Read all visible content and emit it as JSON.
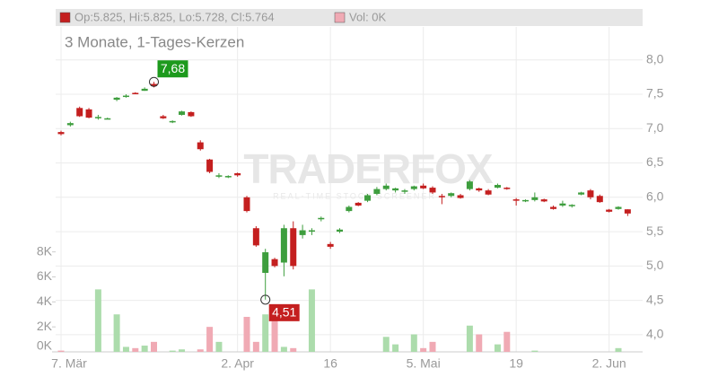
{
  "chart_data": {
    "type": "candlestick",
    "title": "3 Monate, 1-Tages-Kerzen",
    "legend_ohlc": "Op:5.825, Hi:5.825, Lo:5.728, Cl:5.764",
    "legend_volume": "Vol: 0K",
    "watermark": "TRADERFOX",
    "watermark_sub": "REAL-TIME STOCK SCREENER",
    "categories": [
      "7. Mär",
      null,
      null,
      null,
      null,
      null,
      null,
      null,
      null,
      null,
      null,
      null,
      null,
      null,
      null,
      null,
      null,
      null,
      null,
      "2. Apr",
      null,
      null,
      null,
      null,
      null,
      null,
      null,
      null,
      null,
      "16",
      null,
      null,
      null,
      null,
      null,
      null,
      null,
      null,
      null,
      "5. Mai",
      null,
      null,
      null,
      null,
      null,
      null,
      null,
      null,
      null,
      "19",
      null,
      null,
      null,
      null,
      null,
      null,
      null,
      null,
      null,
      "2. Jun",
      null,
      null
    ],
    "open": [
      6.95,
      7.05,
      7.3,
      7.28,
      7.15,
      7.15,
      7.42,
      7.46,
      7.52,
      7.55,
      7.65,
      7.18,
      7.1,
      7.2,
      7.24,
      6.8,
      6.55,
      6.3,
      6.3,
      6.35,
      6.0,
      5.55,
      4.9,
      5.1,
      5.05,
      5.55,
      5.45,
      5.5,
      5.68,
      5.32,
      5.5,
      5.8,
      5.92,
      5.95,
      6.05,
      6.12,
      6.1,
      6.08,
      6.12,
      6.17,
      6.14,
      6.02,
      6.02,
      6.03,
      6.12,
      6.13,
      6.1,
      6.14,
      6.14,
      5.97,
      5.95,
      5.96,
      5.97,
      5.86,
      5.88,
      5.87,
      6.04,
      6.1,
      6.02,
      5.82,
      5.83,
      5.825
    ],
    "high": [
      6.97,
      7.1,
      7.32,
      7.3,
      7.2,
      7.16,
      7.46,
      7.5,
      7.53,
      7.6,
      7.68,
      7.2,
      7.12,
      7.26,
      7.25,
      6.83,
      6.56,
      6.35,
      6.32,
      6.36,
      6.02,
      5.58,
      5.25,
      5.12,
      5.6,
      5.65,
      5.6,
      5.55,
      5.72,
      5.35,
      5.55,
      5.88,
      5.93,
      6.05,
      6.15,
      6.2,
      6.14,
      6.12,
      6.17,
      6.2,
      6.16,
      6.05,
      6.07,
      6.05,
      6.25,
      6.14,
      6.12,
      6.2,
      6.15,
      5.99,
      5.97,
      6.07,
      5.98,
      5.88,
      5.95,
      5.9,
      6.08,
      6.12,
      6.04,
      5.83,
      5.87,
      5.825
    ],
    "low": [
      6.9,
      7.03,
      7.17,
      7.15,
      7.13,
      7.14,
      7.4,
      7.45,
      7.5,
      7.55,
      7.6,
      7.14,
      7.08,
      7.19,
      7.17,
      6.68,
      6.35,
      6.28,
      6.28,
      6.3,
      5.78,
      5.28,
      4.51,
      4.98,
      4.85,
      4.95,
      5.4,
      5.45,
      5.65,
      5.25,
      5.48,
      5.78,
      5.87,
      5.93,
      6.03,
      6.1,
      6.07,
      6.05,
      6.1,
      6.12,
      6.05,
      5.9,
      6.0,
      5.98,
      6.1,
      6.08,
      6.03,
      6.13,
      6.11,
      5.88,
      5.93,
      5.94,
      5.93,
      5.82,
      5.86,
      5.85,
      6.03,
      5.97,
      5.92,
      5.78,
      5.82,
      5.728
    ],
    "close": [
      6.92,
      7.08,
      7.18,
      7.16,
      7.17,
      7.15,
      7.45,
      7.48,
      7.5,
      7.58,
      7.62,
      7.15,
      7.11,
      7.25,
      7.18,
      6.7,
      6.37,
      6.32,
      6.31,
      6.32,
      5.8,
      5.3,
      5.2,
      5.0,
      5.55,
      5.0,
      5.52,
      5.52,
      5.7,
      5.28,
      5.53,
      5.86,
      5.88,
      6.03,
      6.12,
      6.17,
      6.13,
      6.1,
      6.16,
      6.13,
      6.07,
      6.0,
      6.06,
      5.99,
      6.23,
      6.1,
      6.04,
      6.18,
      6.12,
      5.95,
      5.96,
      6.0,
      5.94,
      5.83,
      5.91,
      5.89,
      6.07,
      6.0,
      5.93,
      5.79,
      5.86,
      5.764
    ],
    "volume": [
      100,
      0,
      0,
      0,
      5000,
      0,
      3000,
      400,
      300,
      500,
      800,
      0,
      100,
      200,
      0,
      200,
      2000,
      800,
      0,
      0,
      2800,
      800,
      3000,
      3700,
      400,
      300,
      0,
      5000,
      0,
      0,
      0,
      0,
      0,
      0,
      0,
      1200,
      600,
      0,
      1400,
      300,
      800,
      0,
      0,
      0,
      2100,
      1400,
      0,
      600,
      1600,
      0,
      0,
      100,
      0,
      0,
      0,
      0,
      0,
      0,
      0,
      0,
      300,
      0
    ],
    "ylim": [
      3.75,
      8.48
    ],
    "yticks": [
      {
        "value": 4.0,
        "label": "4,0"
      },
      {
        "value": 4.5,
        "label": "4,5"
      },
      {
        "value": 5.0,
        "label": "5,0"
      },
      {
        "value": 5.5,
        "label": "5,5"
      },
      {
        "value": 6.0,
        "label": "6,0"
      },
      {
        "value": 6.5,
        "label": "6,5"
      },
      {
        "value": 7.0,
        "label": "7,0"
      },
      {
        "value": 7.5,
        "label": "7,5"
      },
      {
        "value": 8.0,
        "label": "8,0"
      }
    ],
    "vlim": [
      0,
      26000
    ],
    "vticks": [
      {
        "value": 0,
        "label": "0K"
      },
      {
        "value": 2000,
        "label": "2K"
      },
      {
        "value": 4000,
        "label": "4K"
      },
      {
        "value": 6000,
        "label": "6K"
      },
      {
        "value": 8000,
        "label": "8K"
      }
    ],
    "up_color": "#3e9e3e",
    "down_color": "#c41f1f",
    "up_volume_color": "#acdcac",
    "down_volume_color": "#f0aab4",
    "high_annotation": {
      "value": 7.68,
      "label": "7,68"
    },
    "low_annotation": {
      "value": 4.51,
      "label": "4,51"
    },
    "grid": true
  }
}
